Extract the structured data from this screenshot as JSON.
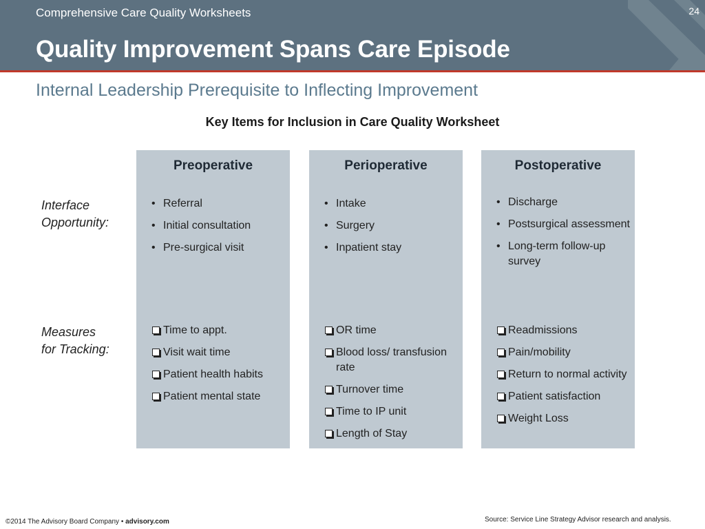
{
  "header": {
    "series": "Comprehensive Care Quality Worksheets",
    "page_number": "24",
    "title": "Quality Improvement Spans Care Episode",
    "background_color": "#5d7180",
    "rule_color": "#c0392b"
  },
  "subtitle": "Internal Leadership Prerequisite to Inflecting Improvement",
  "section_heading": "Key Items for Inclusion in Care Quality Worksheet",
  "row_labels": {
    "interface": [
      "Interface",
      "Opportunity:"
    ],
    "measures": [
      "Measures",
      "for Tracking:"
    ]
  },
  "columns": [
    {
      "title": "Preoperative",
      "interface": [
        "Referral",
        "Initial consultation",
        "Pre-surgical visit"
      ],
      "measures": [
        "Time to appt.",
        "Visit wait time",
        "Patient health habits",
        "Patient mental state"
      ]
    },
    {
      "title": "Perioperative",
      "interface": [
        "Intake",
        "Surgery",
        "Inpatient stay"
      ],
      "measures": [
        "OR time",
        "Blood loss/ transfusion rate",
        "Turnover time",
        "Time to IP unit",
        "Length of Stay"
      ]
    },
    {
      "title": "Postoperative",
      "interface": [
        "Discharge",
        "Postsurgical assessment",
        "Long-term follow-up survey"
      ],
      "measures": [
        "Readmissions",
        "Pain/mobility",
        "Return to normal activity",
        "Patient satisfaction",
        "Weight Loss"
      ]
    }
  ],
  "column_color": "#bfc9d1",
  "footer": {
    "copyright": "©2014 The Advisory Board Company •",
    "website": "advisory.com",
    "source": "Source: Service Line Strategy Advisor research and analysis."
  }
}
